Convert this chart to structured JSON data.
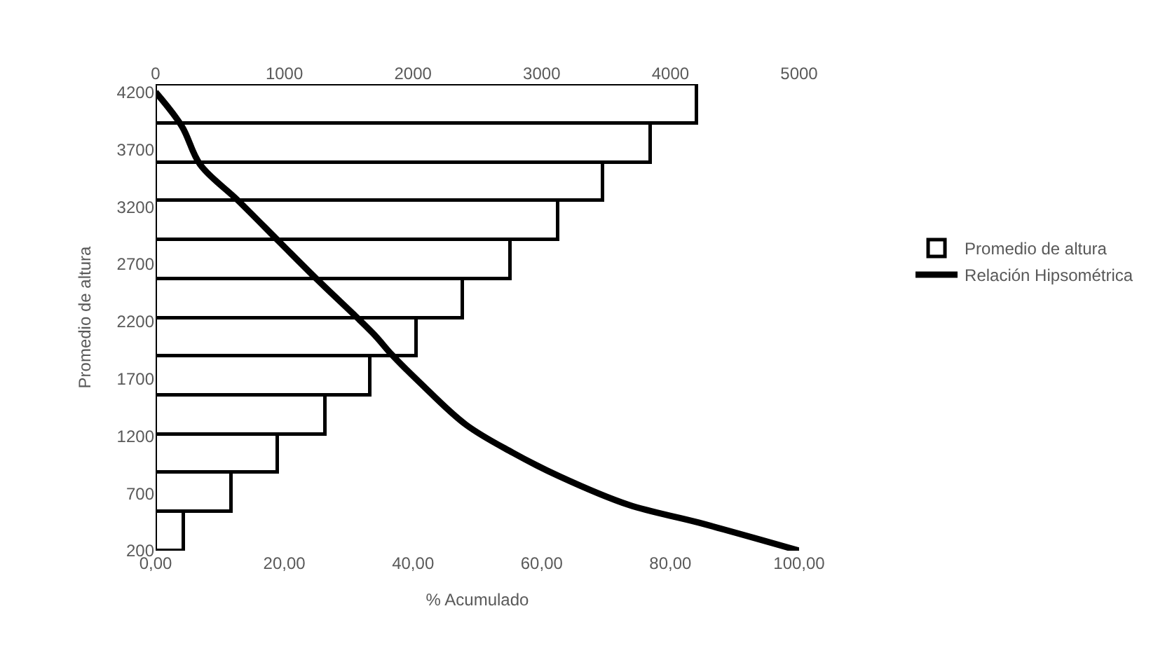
{
  "chart_data": {
    "type": "bar",
    "orientation": "horizontal",
    "series": [
      {
        "name": "Promedio de altura",
        "axis": "x2",
        "color": "#ffffff",
        "x": [
          4100,
          3760,
          3421,
          3082,
          2743,
          2404,
          2065,
          1726,
          1387,
          1048,
          709,
          370
        ],
        "values": [
          4200,
          3850,
          3480,
          3130,
          2760,
          2390,
          2030,
          1670,
          1320,
          950,
          590,
          220
        ]
      },
      {
        "name": "Relación Hipsométrica",
        "type": "line",
        "color": "#000000",
        "x": [
          4200,
          3900,
          3570,
          3255,
          2890,
          2560,
          2095,
          1910,
          1670,
          1300,
          1055,
          850,
          600,
          445,
          200
        ],
        "values": [
          0,
          4.1,
          6.9,
          12.8,
          19.3,
          25.2,
          33.8,
          36.7,
          41,
          48.2,
          55.5,
          62.7,
          73.5,
          84.4,
          100
        ]
      }
    ],
    "x2lim": [
      0,
      5000
    ],
    "x2ticks": [
      0,
      1000,
      2000,
      3000,
      4000,
      5000
    ],
    "xlim": [
      0,
      100
    ],
    "xticks": [
      {
        "value": 0,
        "label": "0,00"
      },
      {
        "value": 20,
        "label": "20,00"
      },
      {
        "value": 40,
        "label": "40,00"
      },
      {
        "value": 60,
        "label": "60,00"
      },
      {
        "value": 80,
        "label": "80,00"
      },
      {
        "value": 100,
        "label": "100,00"
      }
    ],
    "ylim": [
      200,
      4270
    ],
    "yticks": [
      200,
      700,
      1200,
      1700,
      2200,
      2700,
      3200,
      3700,
      4200
    ],
    "xlabel": "% Acumulado",
    "ylabel": "Promedio de altura",
    "legend": "right",
    "line_style": "solid",
    "marker": "none"
  }
}
